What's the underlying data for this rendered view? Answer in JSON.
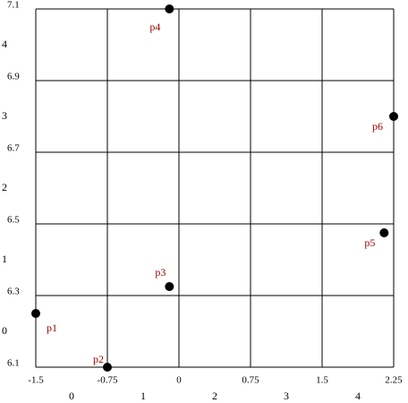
{
  "chart_data": {
    "type": "scatter",
    "x": [
      -1.5,
      -0.75,
      -0.1,
      -0.1,
      2.15,
      2.25
    ],
    "y": [
      6.25,
      6.1,
      6.325,
      7.1,
      6.475,
      6.8
    ],
    "point_labels": [
      "p1",
      "p2",
      "p3",
      "p4",
      "p5",
      "p6"
    ],
    "color": "#000000",
    "label_color": "#a00000",
    "xlim": [
      -1.5,
      2.25
    ],
    "xticks": [
      -1.5,
      -0.75,
      0,
      0.75,
      1.5,
      2.25
    ],
    "ylim": [
      6.1,
      7.1
    ],
    "yticks": [
      6.1,
      6.3,
      6.5,
      6.7,
      6.9,
      7.1
    ],
    "column_labels": [
      "0",
      "1",
      "2",
      "3",
      "4"
    ],
    "row_labels": [
      "0",
      "1",
      "2",
      "3",
      "4"
    ],
    "grid": true
  }
}
